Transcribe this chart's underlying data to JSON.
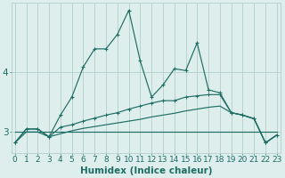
{
  "xlabel": "Humidex (Indice chaleur)",
  "background_color": "#ddeeed",
  "grid_color": "#b8d4d0",
  "line_color": "#1e6e64",
  "x_ticks": [
    0,
    1,
    2,
    3,
    4,
    5,
    6,
    7,
    8,
    9,
    10,
    11,
    12,
    13,
    14,
    15,
    16,
    17,
    18,
    19,
    20,
    21,
    22,
    23
  ],
  "y_ticks": [
    3,
    4
  ],
  "ylim": [
    2.65,
    5.15
  ],
  "xlim": [
    -0.3,
    23.3
  ],
  "series1_y": [
    2.82,
    3.05,
    3.05,
    2.92,
    3.28,
    3.58,
    4.08,
    4.38,
    4.38,
    4.62,
    5.02,
    4.18,
    3.58,
    3.78,
    4.05,
    4.02,
    4.48,
    3.7,
    3.65,
    3.32,
    3.28,
    3.22,
    2.82,
    2.95
  ],
  "series2_y": [
    2.82,
    3.05,
    3.05,
    2.92,
    3.08,
    3.12,
    3.18,
    3.23,
    3.28,
    3.32,
    3.38,
    3.43,
    3.48,
    3.52,
    3.52,
    3.58,
    3.6,
    3.62,
    3.62,
    3.32,
    3.28,
    3.22,
    2.82,
    2.95
  ],
  "series3_y": [
    3.0,
    3.0,
    3.0,
    3.0,
    3.0,
    3.0,
    3.0,
    3.0,
    3.0,
    3.0,
    3.0,
    3.0,
    3.0,
    3.0,
    3.0,
    3.0,
    3.0,
    3.0,
    3.0,
    3.0,
    3.0,
    3.0,
    3.0,
    3.0
  ],
  "series4_y": [
    2.82,
    3.0,
    3.0,
    2.92,
    2.97,
    3.02,
    3.06,
    3.09,
    3.12,
    3.15,
    3.18,
    3.21,
    3.25,
    3.28,
    3.31,
    3.35,
    3.38,
    3.41,
    3.43,
    3.32,
    3.28,
    3.22,
    2.82,
    2.95
  ],
  "font_color": "#1e6e64",
  "tick_fontsize": 6.5,
  "label_fontsize": 7.5
}
